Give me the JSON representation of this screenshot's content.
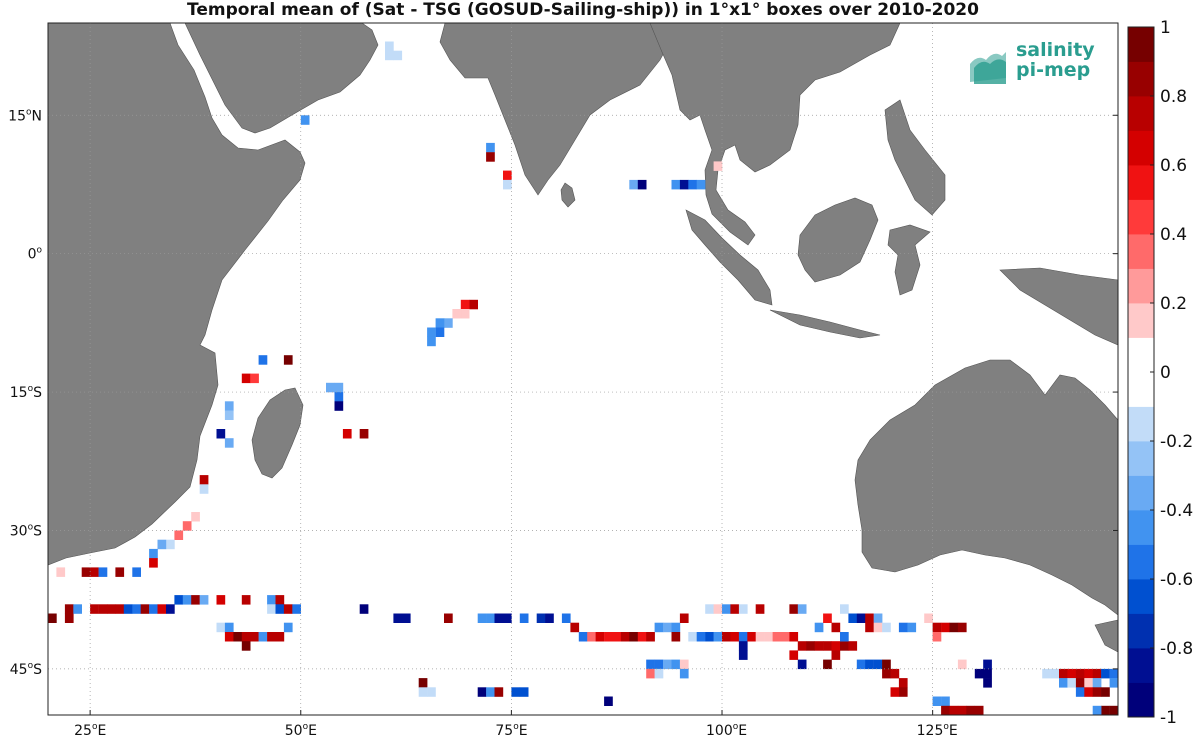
{
  "title": "Temporal mean of (Sat - TSG (GOSUD-Sailing-ship)) in 1°x1° boxes over 2010-2020",
  "logo": {
    "line1": "salinity",
    "line2": "pi-mep"
  },
  "map": {
    "lon_range": [
      20,
      147
    ],
    "lat_range": [
      -50,
      25
    ],
    "lon_ticks": [
      {
        "value": 25,
        "label": "25",
        "suffix": "E"
      },
      {
        "value": 50,
        "label": "50",
        "suffix": "E"
      },
      {
        "value": 75,
        "label": "75",
        "suffix": "E"
      },
      {
        "value": 100,
        "label": "100",
        "suffix": "E"
      },
      {
        "value": 125,
        "label": "125",
        "suffix": "E"
      }
    ],
    "lat_ticks": [
      {
        "value": 15,
        "label": "15",
        "suffix": "N"
      },
      {
        "value": 0,
        "label": "0",
        "suffix": ""
      },
      {
        "value": -15,
        "label": "15",
        "suffix": "S"
      },
      {
        "value": -30,
        "label": "30",
        "suffix": "S"
      },
      {
        "value": -45,
        "label": "45",
        "suffix": "S"
      }
    ],
    "land_color": "#808080",
    "ocean_color": "#ffffff",
    "grid": "dotted"
  },
  "colorbar": {
    "min": -1,
    "max": 1,
    "step": 0.1,
    "tick_labels": [
      "1",
      "0.8",
      "0.6",
      "0.4",
      "0.2",
      "0",
      "-0.2",
      "-0.4",
      "-0.6",
      "-0.8",
      "-1"
    ],
    "colors_bottom_to_top": [
      "#00007a",
      "#000f92",
      "#0030b0",
      "#0050d0",
      "#1f73e8",
      "#4193f0",
      "#69aaf3",
      "#94c3f6",
      "#c2dcf8",
      "#ffffff",
      "#ffffff",
      "#ffc9c9",
      "#ff9a9a",
      "#ff6a6a",
      "#ff3a3a",
      "#f01212",
      "#d40000",
      "#b80000",
      "#980000",
      "#760000"
    ]
  },
  "chart_data": {
    "type": "heatmap",
    "title": "Temporal mean of (Sat - TSG (GOSUD-Sailing-ship)) in 1°x1° boxes over 2010-2020",
    "value_range": [
      -1,
      1
    ],
    "cells": [
      [
        60,
        22,
        -0.2
      ],
      [
        60,
        21,
        -0.15
      ],
      [
        61,
        21,
        -0.15
      ],
      [
        50,
        14,
        -0.5
      ],
      [
        72,
        11,
        -0.4
      ],
      [
        72,
        10,
        0.8
      ],
      [
        74,
        8,
        0.5
      ],
      [
        74,
        7,
        -0.15
      ],
      [
        89,
        7,
        -0.3
      ],
      [
        90,
        7,
        -0.9
      ],
      [
        94,
        7,
        -0.4
      ],
      [
        95,
        7,
        -0.8
      ],
      [
        96,
        7,
        -0.6
      ],
      [
        97,
        7,
        -0.45
      ],
      [
        99,
        9,
        0.2
      ],
      [
        70,
        -6,
        0.7
      ],
      [
        69,
        -6,
        0.55
      ],
      [
        69,
        -7,
        0.2
      ],
      [
        68,
        -7,
        0.15
      ],
      [
        67,
        -8,
        -0.35
      ],
      [
        66,
        -8,
        -0.5
      ],
      [
        66,
        -9,
        -0.55
      ],
      [
        65,
        -9,
        -0.5
      ],
      [
        65,
        -10,
        -0.5
      ],
      [
        45,
        -12,
        -0.6
      ],
      [
        48,
        -12,
        0.95
      ],
      [
        43,
        -14,
        0.6
      ],
      [
        44,
        -14,
        0.45
      ],
      [
        53,
        -15,
        -0.35
      ],
      [
        54,
        -15,
        -0.3
      ],
      [
        54,
        -16,
        -0.6
      ],
      [
        54,
        -17,
        -0.9
      ],
      [
        41,
        -17,
        -0.3
      ],
      [
        41,
        -18,
        -0.25
      ],
      [
        40,
        -20,
        -0.85
      ],
      [
        41,
        -21,
        -0.3
      ],
      [
        55,
        -20,
        0.6
      ],
      [
        57,
        -20,
        0.9
      ],
      [
        38,
        -25,
        0.7
      ],
      [
        38,
        -26,
        -0.2
      ],
      [
        37,
        -29,
        0.2
      ],
      [
        36,
        -30,
        0.4
      ],
      [
        35,
        -31,
        0.3
      ],
      [
        34,
        -32,
        -0.2
      ],
      [
        33,
        -32,
        -0.35
      ],
      [
        32,
        -33,
        -0.5
      ],
      [
        32,
        -34,
        0.6
      ],
      [
        24,
        -35,
        0.9
      ],
      [
        25,
        -35,
        0.7
      ],
      [
        26,
        -35,
        -0.6
      ],
      [
        28,
        -35,
        0.8
      ],
      [
        30,
        -35,
        -0.6
      ],
      [
        21,
        -35,
        0.2
      ],
      [
        20,
        -40,
        0.95
      ],
      [
        22,
        -39,
        0.8
      ],
      [
        22,
        -40,
        0.85
      ],
      [
        23,
        -39,
        -0.5
      ],
      [
        25,
        -39,
        0.7
      ],
      [
        26,
        -39,
        0.7
      ],
      [
        27,
        -39,
        0.7
      ],
      [
        28,
        -39,
        0.75
      ],
      [
        29,
        -39,
        -0.7
      ],
      [
        30,
        -39,
        -0.6
      ],
      [
        31,
        -39,
        0.85
      ],
      [
        32,
        -39,
        -0.6
      ],
      [
        33,
        -39,
        0.6
      ],
      [
        34,
        -39,
        -0.8
      ],
      [
        35,
        -38,
        -0.7
      ],
      [
        36,
        -38,
        -0.5
      ],
      [
        37,
        -38,
        0.8
      ],
      [
        38,
        -38,
        -0.3
      ],
      [
        40,
        -38,
        0.6
      ],
      [
        43,
        -38,
        0.7
      ],
      [
        46,
        -38,
        -0.5
      ],
      [
        47,
        -38,
        0.7
      ],
      [
        46,
        -39,
        -0.2
      ],
      [
        47,
        -39,
        -0.7
      ],
      [
        48,
        -39,
        0.7
      ],
      [
        49,
        -39,
        -0.6
      ],
      [
        40,
        -41,
        -0.2
      ],
      [
        41,
        -41,
        -0.4
      ],
      [
        41,
        -42,
        0.6
      ],
      [
        42,
        -42,
        0.95
      ],
      [
        43,
        -42,
        0.7
      ],
      [
        43,
        -43,
        0.95
      ],
      [
        44,
        -42,
        0.7
      ],
      [
        45,
        -42,
        -0.4
      ],
      [
        46,
        -42,
        0.7
      ],
      [
        47,
        -42,
        0.7
      ],
      [
        48,
        -41,
        -0.5
      ],
      [
        57,
        -39,
        -0.9
      ],
      [
        61,
        -40,
        -0.8
      ],
      [
        62,
        -40,
        -0.85
      ],
      [
        67,
        -40,
        0.9
      ],
      [
        71,
        -40,
        -0.5
      ],
      [
        72,
        -40,
        -0.5
      ],
      [
        73,
        -40,
        -0.8
      ],
      [
        74,
        -40,
        -0.8
      ],
      [
        76,
        -40,
        -0.6
      ],
      [
        78,
        -40,
        -0.75
      ],
      [
        79,
        -40,
        -0.8
      ],
      [
        81,
        -40,
        -0.6
      ],
      [
        82,
        -41,
        0.7
      ],
      [
        83,
        -42,
        -0.6
      ],
      [
        84,
        -42,
        0.4
      ],
      [
        85,
        -42,
        0.6
      ],
      [
        86,
        -42,
        0.5
      ],
      [
        87,
        -42,
        0.5
      ],
      [
        88,
        -42,
        0.7
      ],
      [
        89,
        -42,
        0.95
      ],
      [
        90,
        -42,
        0.5
      ],
      [
        91,
        -42,
        0.7
      ],
      [
        92,
        -41,
        -0.5
      ],
      [
        93,
        -41,
        -0.3
      ],
      [
        94,
        -41,
        -0.5
      ],
      [
        95,
        -40,
        0.7
      ],
      [
        94,
        -42,
        0.8
      ],
      [
        96,
        -42,
        -0.2
      ],
      [
        97,
        -42,
        -0.6
      ],
      [
        98,
        -42,
        -0.7
      ],
      [
        99,
        -42,
        -0.5
      ],
      [
        100,
        -42,
        0.7
      ],
      [
        101,
        -42,
        0.6
      ],
      [
        102,
        -42,
        -0.6
      ],
      [
        98,
        -39,
        -0.2
      ],
      [
        99,
        -39,
        0.2
      ],
      [
        100,
        -39,
        -0.4
      ],
      [
        101,
        -39,
        0.7
      ],
      [
        102,
        -39,
        -0.2
      ],
      [
        104,
        -39,
        0.7
      ],
      [
        108,
        -39,
        0.8
      ],
      [
        109,
        -39,
        -0.3
      ],
      [
        102,
        -43,
        -0.8
      ],
      [
        102,
        -44,
        -0.8
      ],
      [
        103,
        -42,
        0.6
      ],
      [
        104,
        -42,
        0.2
      ],
      [
        105,
        -42,
        0.2
      ],
      [
        106,
        -42,
        0.3
      ],
      [
        107,
        -42,
        0.4
      ],
      [
        108,
        -42,
        0.6
      ],
      [
        109,
        -43,
        0.7
      ],
      [
        110,
        -43,
        0.8
      ],
      [
        111,
        -43,
        0.7
      ],
      [
        112,
        -43,
        0.7
      ],
      [
        113,
        -43,
        0.6
      ],
      [
        114,
        -43,
        0.8
      ],
      [
        115,
        -43,
        0.7
      ],
      [
        112,
        -45,
        0.95
      ],
      [
        113,
        -44,
        0.7
      ],
      [
        108,
        -44,
        0.6
      ],
      [
        109,
        -45,
        -0.8
      ],
      [
        111,
        -41,
        -0.5
      ],
      [
        112,
        -40,
        0.5
      ],
      [
        113,
        -41,
        0.7
      ],
      [
        114,
        -39,
        -0.2
      ],
      [
        114,
        -42,
        -0.6
      ],
      [
        115,
        -40,
        -0.7
      ],
      [
        116,
        -40,
        -0.8
      ],
      [
        117,
        -40,
        0.7
      ],
      [
        118,
        -40,
        -0.3
      ],
      [
        117,
        -41,
        0.7
      ],
      [
        118,
        -41,
        0.2
      ],
      [
        119,
        -41,
        -0.2
      ],
      [
        121,
        -41,
        -0.6
      ],
      [
        122,
        -41,
        -0.4
      ],
      [
        124,
        -40,
        0.2
      ],
      [
        125,
        -41,
        0.7
      ],
      [
        126,
        -41,
        0.6
      ],
      [
        127,
        -41,
        0.95
      ],
      [
        128,
        -41,
        0.9
      ],
      [
        125,
        -42,
        0.3
      ],
      [
        116,
        -45,
        -0.6
      ],
      [
        117,
        -45,
        -0.7
      ],
      [
        118,
        -45,
        -0.7
      ],
      [
        119,
        -45,
        0.95
      ],
      [
        119,
        -46,
        0.9
      ],
      [
        120,
        -46,
        0.7
      ],
      [
        121,
        -47,
        0.7
      ],
      [
        121,
        -48,
        0.8
      ],
      [
        120,
        -48,
        0.6
      ],
      [
        91,
        -45,
        -0.6
      ],
      [
        92,
        -45,
        -0.6
      ],
      [
        93,
        -45,
        -0.3
      ],
      [
        94,
        -45,
        -0.4
      ],
      [
        91,
        -46,
        0.3
      ],
      [
        92,
        -46,
        -0.2
      ],
      [
        95,
        -45,
        0.2
      ],
      [
        95,
        -46,
        -0.4
      ],
      [
        125,
        -49,
        -0.4
      ],
      [
        126,
        -49,
        -0.5
      ],
      [
        126,
        -50,
        0.8
      ],
      [
        127,
        -50,
        0.7
      ],
      [
        128,
        -50,
        0.7
      ],
      [
        129,
        -50,
        0.8
      ],
      [
        130,
        -50,
        0.85
      ],
      [
        128,
        -45,
        0.1
      ],
      [
        131,
        -45,
        -0.8
      ],
      [
        131,
        -46,
        -0.9
      ],
      [
        130,
        -46,
        -0.9
      ],
      [
        131,
        -47,
        -0.9
      ],
      [
        138,
        -46,
        -0.2
      ],
      [
        139,
        -46,
        -0.2
      ],
      [
        140,
        -46,
        0.7
      ],
      [
        141,
        -46,
        0.6
      ],
      [
        142,
        -46,
        0.7
      ],
      [
        143,
        -46,
        0.6
      ],
      [
        144,
        -46,
        0.7
      ],
      [
        145,
        -46,
        -0.7
      ],
      [
        146,
        -46,
        -0.6
      ],
      [
        140,
        -47,
        -0.4
      ],
      [
        141,
        -47,
        -0.2
      ],
      [
        142,
        -47,
        0.8
      ],
      [
        143,
        -47,
        0.2
      ],
      [
        144,
        -47,
        -0.3
      ],
      [
        146,
        -47,
        -0.5
      ],
      [
        142,
        -48,
        -0.6
      ],
      [
        143,
        -48,
        0.6
      ],
      [
        144,
        -48,
        0.8
      ],
      [
        145,
        -48,
        0.95
      ],
      [
        145,
        -50,
        0.95
      ],
      [
        146,
        -50,
        0.95
      ],
      [
        144,
        -50,
        -0.5
      ],
      [
        64,
        -47,
        0.95
      ],
      [
        64,
        -48,
        -0.2
      ],
      [
        65,
        -48,
        -0.2
      ],
      [
        71,
        -48,
        -0.9
      ],
      [
        72,
        -48,
        -0.5
      ],
      [
        73,
        -48,
        0.8
      ],
      [
        75,
        -48,
        -0.7
      ],
      [
        76,
        -48,
        -0.7
      ],
      [
        86,
        -49,
        -0.9
      ]
    ]
  }
}
